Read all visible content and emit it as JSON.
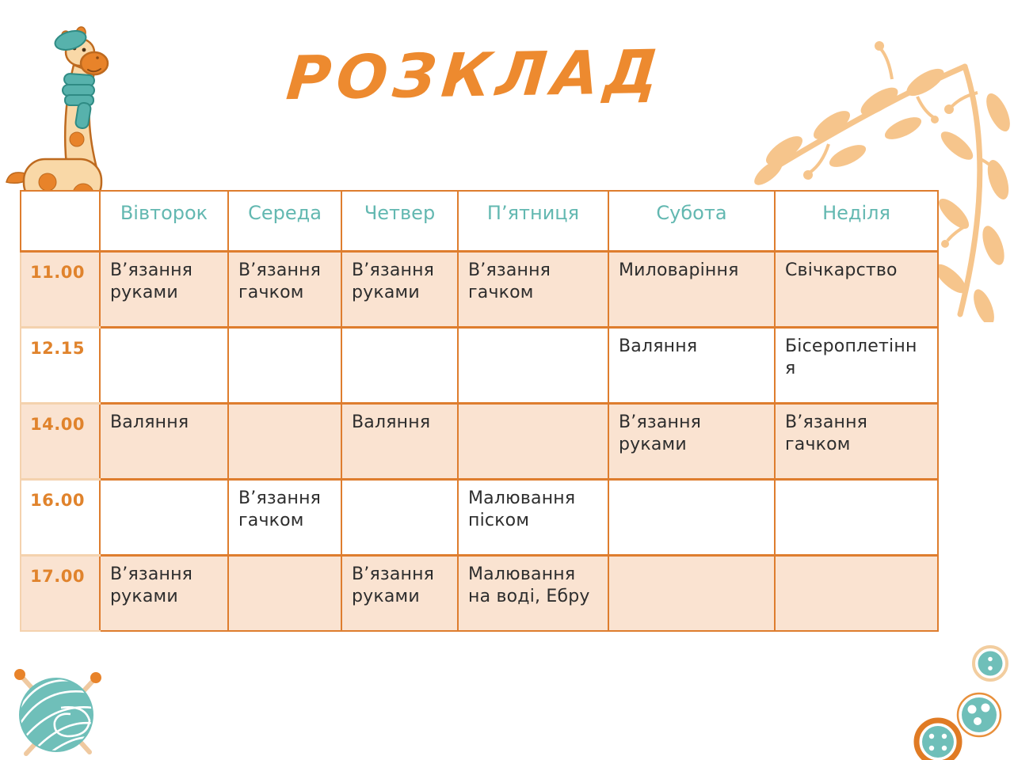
{
  "title": "РОЗКЛАД",
  "colors": {
    "title_orange": "#ED8A2F",
    "border_orange": "#DE7D2E",
    "time_border_light": "#F4D2AE",
    "header_teal": "#63B8B1",
    "row_highlight_peach": "#FAE3D1",
    "time_text_orange": "#E0832C",
    "cell_text": "#2D2D2D",
    "decoration_branch": "#F6C58C",
    "decoration_teal": "#6FBFB9",
    "decoration_orange": "#E8832A"
  },
  "schedule": {
    "days": [
      "Вівторок",
      "Середа",
      "Четвер",
      "П’ятниця",
      "Субота",
      "Неділя"
    ],
    "rows": [
      {
        "time": "11.00",
        "highlight": true,
        "cells": [
          "В’язання руками",
          "В’язання гачком",
          "В’язання руками",
          "В’язання гачком",
          "Миловаріння",
          "Свічкарство"
        ]
      },
      {
        "time": "12.15",
        "highlight": false,
        "cells": [
          "",
          "",
          "",
          "",
          "Валяння",
          "Бісероплетіння"
        ]
      },
      {
        "time": "14.00",
        "highlight": true,
        "cells": [
          "Валяння",
          "",
          "Валяння",
          "",
          "В’язання руками",
          "В’язання гачком"
        ]
      },
      {
        "time": "16.00",
        "highlight": false,
        "cells": [
          "",
          "В’язання гачком",
          "",
          "Малювання піском",
          "",
          ""
        ]
      },
      {
        "time": "17.00",
        "highlight": true,
        "cells": [
          "В’язання руками",
          "",
          "В’язання руками",
          "Малювання на воді, Ебру",
          "",
          ""
        ]
      }
    ]
  },
  "decorations": {
    "top_left": "giraffe with teal beret and scarf",
    "top_right": "peach leaf branch corner",
    "bottom_left": "teal yarn ball with knitting needles",
    "bottom_right": "three teal sewing buttons"
  }
}
